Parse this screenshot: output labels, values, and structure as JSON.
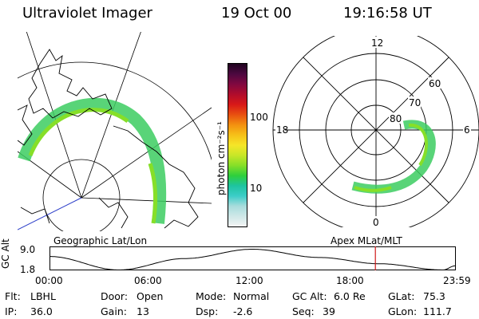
{
  "header": {
    "title": "Ultraviolet Imager",
    "date": "19 Oct 00",
    "time": "19:16:58 UT"
  },
  "left_panel": {
    "label": "Geographic Lat/Lon"
  },
  "right_panel": {
    "label": "Apex MLat/MLT",
    "mlt_labels": {
      "top": "12",
      "left": "18",
      "right": "6",
      "bottom": "0"
    },
    "lat_labels": [
      "60",
      "70",
      "80"
    ]
  },
  "colorbar": {
    "unit": "photon cm⁻²s⁻¹",
    "ticks": [
      "100",
      "10"
    ],
    "colors": [
      "#f4f4f4",
      "#cfe8e8",
      "#a8dcdc",
      "#3ccdc8",
      "#1ec4a0",
      "#2ecf3c",
      "#86df28",
      "#c8e628",
      "#f6e628",
      "#f6c018",
      "#f39010",
      "#e85010",
      "#d81818",
      "#b00c2c",
      "#800840",
      "#4c0840",
      "#200420"
    ]
  },
  "timeline": {
    "axis_title": "GC Alt",
    "y_ticks": [
      "9.0",
      "1.8"
    ],
    "x_ticks": [
      "00:00",
      "06:00",
      "12:00",
      "18:00",
      "23:59"
    ],
    "current_time": "19:16:58",
    "marker_color": "#d01818"
  },
  "info": {
    "flt_label": "Flt:",
    "flt_value": "LBHL",
    "ip_label": "IP:",
    "ip_value": "36.0",
    "door_label": "Door:",
    "door_value": "Open",
    "gain_label": "Gain:",
    "gain_value": "13",
    "mode_label": "Mode:",
    "mode_value": "Normal",
    "dsp_label": "Dsp:",
    "dsp_value": "-2.6",
    "gcalt_label": "GC Alt:",
    "gcalt_value": "6.0 Re",
    "seq_label": "Seq:",
    "seq_value": "39",
    "glat_label": "GLat:",
    "glat_value": "75.3",
    "glon_label": "GLon:",
    "glon_value": "111.7"
  }
}
